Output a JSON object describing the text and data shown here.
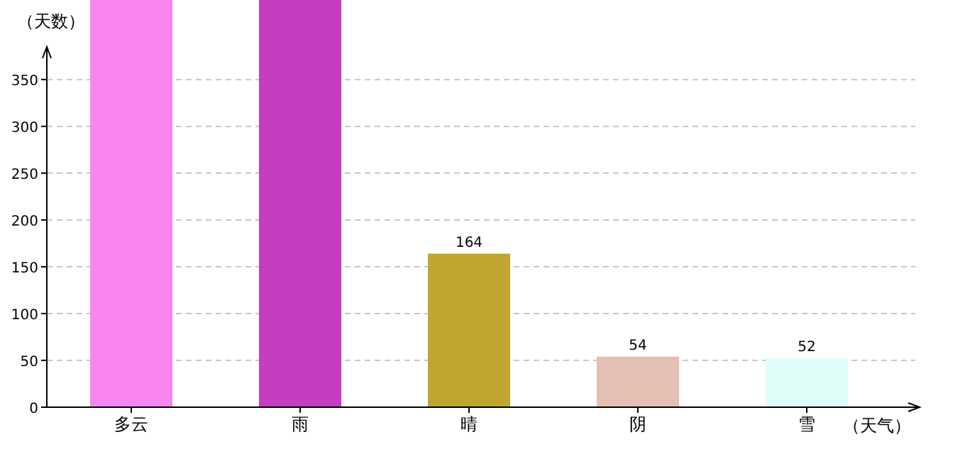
{
  "chart_data": {
    "type": "bar",
    "ylabel": "（天数）",
    "xlabel": "（天气）",
    "categories": [
      "多云",
      "雨",
      "晴",
      "阴",
      "雪"
    ],
    "values": [
      435,
      435,
      164,
      54,
      52
    ],
    "colors": [
      "#f986f0",
      "#c63dbf",
      "#c0a530",
      "#e4bfb4",
      "#e0fcf8"
    ],
    "value_labels": [
      null,
      null,
      "164",
      "54",
      "52"
    ],
    "ylim": [
      0,
      435
    ],
    "yticks": [
      0,
      50,
      100,
      150,
      200,
      250,
      300,
      350
    ],
    "grid": "y"
  }
}
